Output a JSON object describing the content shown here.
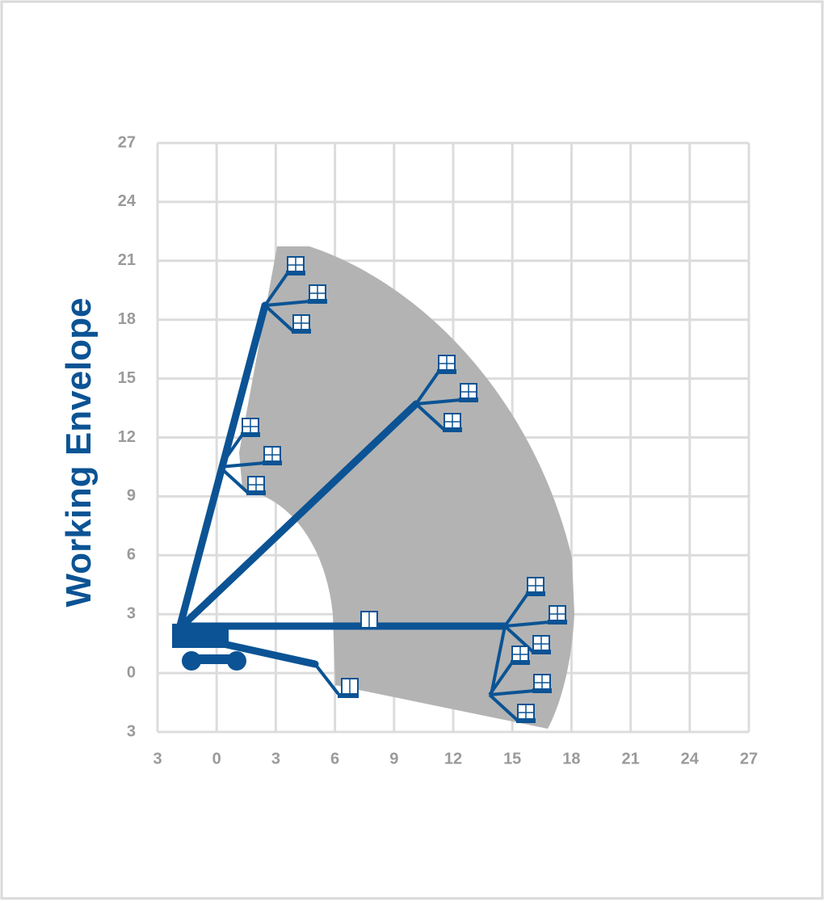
{
  "title": "Working Envelope",
  "axes": {
    "x_labels": [
      "3",
      "0",
      "3",
      "6",
      "9",
      "12",
      "15",
      "18",
      "21",
      "24",
      "27"
    ],
    "y_labels": [
      "27",
      "24",
      "21",
      "18",
      "15",
      "12",
      "9",
      "6",
      "3",
      "0",
      "3"
    ]
  }
}
